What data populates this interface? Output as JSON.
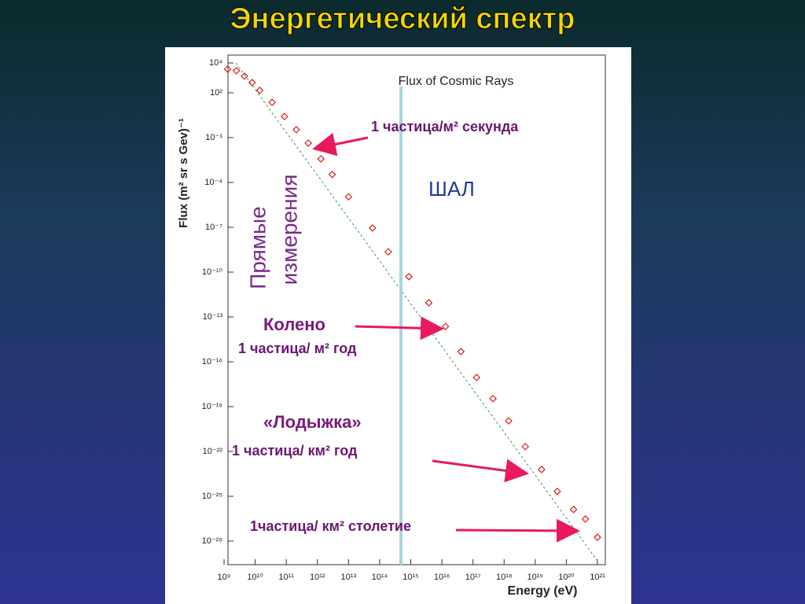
{
  "slide": {
    "title": "Энергетический спектр",
    "labels": [
      "1 частица/м² секунда",
      "ШАЛ",
      "Прямые",
      "измерения",
      "Колено",
      "1 частица/ м² год",
      "«Лодыжка»",
      "1 частица/ км² год",
      "1частица/ км² столетие"
    ]
  },
  "chart_data": {
    "type": "scatter",
    "title": "Flux of Cosmic Rays",
    "x_label": "Energy (eV)",
    "y_label": "Flux (m² sr s Gev)⁻¹",
    "log_x": true,
    "log_y": true,
    "color": "#d42020",
    "xlim": [
      1000000000.0,
      1e+21
    ],
    "ylim": [
      1e-30,
      10000.0
    ],
    "xticks": [
      {
        "value": 1000000000.0,
        "label": "10⁹"
      },
      {
        "value": 10000000000.0,
        "label": "10¹⁰"
      },
      {
        "value": 100000000000.0,
        "label": "10¹¹"
      },
      {
        "value": 1000000000000.0,
        "label": "10¹²"
      },
      {
        "value": 10000000000000.0,
        "label": "10¹³"
      },
      {
        "value": 100000000000000.0,
        "label": "10¹⁴"
      },
      {
        "value": 1000000000000000.0,
        "label": "10¹⁵"
      },
      {
        "value": 1e+16,
        "label": "10¹⁶"
      },
      {
        "value": 1e+17,
        "label": "10¹⁷"
      },
      {
        "value": 1e+18,
        "label": "10¹⁸"
      },
      {
        "value": 1e+19,
        "label": "10¹⁹"
      },
      {
        "value": 1e+20,
        "label": "10²⁰"
      },
      {
        "value": 1e+21,
        "label": "10²¹"
      }
    ],
    "yticks": [
      {
        "value": 10000.0,
        "label": "10⁴"
      },
      {
        "value": 100.0,
        "label": "10²"
      },
      {
        "value": 0.1,
        "label": "10⁻¹"
      },
      {
        "value": 0.0001,
        "label": "10⁻⁴"
      },
      {
        "value": 1e-07,
        "label": "10⁻⁷"
      },
      {
        "value": 1e-10,
        "label": "10⁻¹⁰"
      },
      {
        "value": 1e-13,
        "label": "10⁻¹³"
      },
      {
        "value": 1e-16,
        "label": "10⁻¹⁶"
      },
      {
        "value": 1e-19,
        "label": "10⁻¹⁹"
      },
      {
        "value": 1e-22,
        "label": "10⁻²²"
      },
      {
        "value": 1e-25,
        "label": "10⁻²⁵"
      },
      {
        "value": 1e-28,
        "label": "10⁻²⁸"
      }
    ],
    "x": [
      1300000000.0,
      2500000000.0,
      4500000000.0,
      8000000000.0,
      14000000000.0,
      35000000000.0,
      87000000000.0,
      210000000000.0,
      510000000000.0,
      1300000000000.0,
      3000000000000.0,
      10000000000000.0,
      59000000000000.0,
      190000000000000.0,
      870000000000000.0,
      3800000000000000.0,
      1.3e+16,
      4.1e+16,
      1.3e+17,
      4.4e+17,
      1.4e+18,
      4.8e+18,
      1.6e+19,
      5.1e+19,
      1.7e+20,
      4.1e+20,
      1e+21
    ],
    "values": [
      3800,
      3000,
      1300,
      480,
      145,
      23,
      2.6,
      0.34,
      0.043,
      0.0038,
      0.00034,
      1.1e-05,
      8.9e-08,
      2.3e-09,
      5e-11,
      8.9e-13,
      2.3e-14,
      4.8e-16,
      8.9e-18,
      3.4e-19,
      1.1e-20,
      2.1e-22,
      6.2e-24,
      2.1e-25,
      1.3e-26,
      3e-27,
      1.8e-28
    ]
  }
}
